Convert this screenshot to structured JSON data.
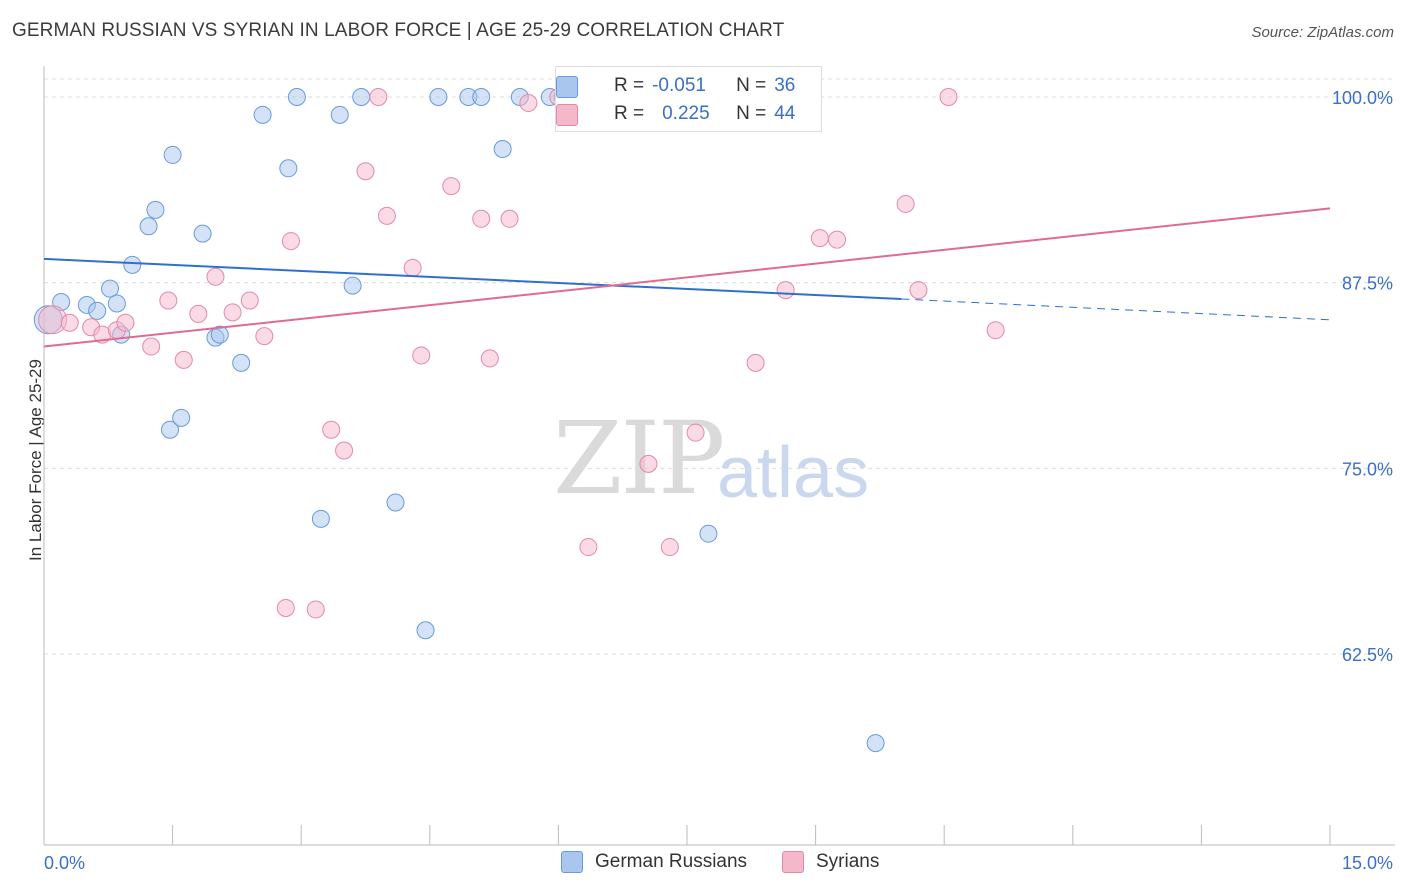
{
  "header": {
    "title": "GERMAN RUSSIAN VS SYRIAN IN LABOR FORCE | AGE 25-29 CORRELATION CHART",
    "source": "Source: ZipAtlas.com"
  },
  "watermark": {
    "zip": "ZIP",
    "atlas": "atlas"
  },
  "legend": {
    "r_label": "R =",
    "n_label": "N =",
    "rows": [
      {
        "r": "-0.051",
        "n": "36",
        "color": "#a8c6ee"
      },
      {
        "r": "0.225",
        "n": "44",
        "color": "#f5b8cb"
      }
    ]
  },
  "bottom_legend": [
    "German Russians",
    "Syrians"
  ],
  "chart_data": {
    "type": "scatter",
    "title": "GERMAN RUSSIAN VS SYRIAN IN LABOR FORCE | AGE 25-29 CORRELATION CHART",
    "xlabel": "",
    "ylabel": "In Labor Force | Age 25-29",
    "xlim": [
      0,
      15
    ],
    "ylim": [
      50,
      101
    ],
    "x_tick_labels": [
      "0.0%",
      "15.0%"
    ],
    "y_ticks": [
      62.5,
      75.0,
      87.5,
      100.0
    ],
    "y_tick_labels": [
      "62.5%",
      "75.0%",
      "87.5%",
      "100.0%"
    ],
    "grid": true,
    "legend_position": "top-center",
    "series": [
      {
        "name": "German Russians",
        "color": "#a8c6ee",
        "stroke": "#6a9bd8",
        "trend_color": "#2f6fd0",
        "trend": {
          "x0": 0,
          "y0": 89.1,
          "x1": 10.0,
          "y1": 86.4,
          "dash_to_x": 15,
          "dash_y": 85.0
        },
        "points": [
          [
            0.05,
            85.0
          ],
          [
            0.2,
            86.2
          ],
          [
            0.5,
            86.0
          ],
          [
            0.62,
            85.6
          ],
          [
            0.77,
            87.1
          ],
          [
            0.9,
            84.0
          ],
          [
            1.03,
            88.7
          ],
          [
            1.22,
            91.3
          ],
          [
            1.3,
            92.4
          ],
          [
            1.5,
            96.1
          ],
          [
            1.47,
            77.6
          ],
          [
            1.6,
            78.4
          ],
          [
            1.85,
            90.8
          ],
          [
            2.0,
            83.8
          ],
          [
            2.05,
            84.0
          ],
          [
            2.3,
            82.1
          ],
          [
            2.55,
            98.8
          ],
          [
            2.85,
            95.2
          ],
          [
            2.95,
            100.0
          ],
          [
            3.23,
            71.6
          ],
          [
            3.45,
            98.8
          ],
          [
            3.6,
            87.3
          ],
          [
            3.7,
            100.0
          ],
          [
            4.1,
            72.7
          ],
          [
            4.45,
            64.1
          ],
          [
            4.6,
            100.0
          ],
          [
            4.95,
            100.0
          ],
          [
            5.1,
            100.0
          ],
          [
            5.35,
            96.5
          ],
          [
            5.55,
            100.0
          ],
          [
            5.9,
            100.0
          ],
          [
            6.05,
            100.0
          ],
          [
            7.75,
            70.6
          ],
          [
            7.9,
            100.0
          ],
          [
            9.7,
            56.5
          ],
          [
            0.85,
            86.1
          ]
        ]
      },
      {
        "name": "Syrians",
        "color": "#f5b8cb",
        "stroke": "#e48aa6",
        "trend_color": "#e06a92",
        "trend": {
          "x0": 0,
          "y0": 83.2,
          "x1": 15,
          "y1": 92.5
        },
        "points": [
          [
            0.1,
            85.0
          ],
          [
            0.3,
            84.8
          ],
          [
            0.55,
            84.5
          ],
          [
            0.68,
            84.0
          ],
          [
            0.85,
            84.3
          ],
          [
            0.95,
            84.8
          ],
          [
            1.25,
            83.2
          ],
          [
            1.45,
            86.3
          ],
          [
            1.63,
            82.3
          ],
          [
            1.8,
            85.4
          ],
          [
            2.0,
            87.9
          ],
          [
            2.2,
            85.5
          ],
          [
            2.4,
            86.3
          ],
          [
            2.57,
            83.9
          ],
          [
            2.88,
            90.3
          ],
          [
            2.82,
            65.6
          ],
          [
            3.17,
            65.5
          ],
          [
            3.35,
            77.6
          ],
          [
            3.5,
            76.2
          ],
          [
            3.75,
            95.0
          ],
          [
            3.9,
            100.0
          ],
          [
            4.0,
            92.0
          ],
          [
            4.3,
            88.5
          ],
          [
            4.4,
            82.6
          ],
          [
            4.75,
            94.0
          ],
          [
            5.1,
            91.8
          ],
          [
            5.2,
            82.4
          ],
          [
            5.43,
            91.8
          ],
          [
            5.65,
            99.6
          ],
          [
            6.0,
            100.0
          ],
          [
            6.35,
            69.7
          ],
          [
            7.05,
            75.3
          ],
          [
            7.3,
            69.7
          ],
          [
            7.6,
            77.4
          ],
          [
            7.7,
            100.0
          ],
          [
            8.3,
            82.1
          ],
          [
            8.65,
            87.0
          ],
          [
            8.9,
            100.0
          ],
          [
            9.05,
            90.5
          ],
          [
            9.25,
            90.4
          ],
          [
            10.05,
            92.8
          ],
          [
            10.2,
            87.0
          ],
          [
            10.55,
            100.0
          ],
          [
            11.1,
            84.3
          ]
        ]
      }
    ]
  }
}
